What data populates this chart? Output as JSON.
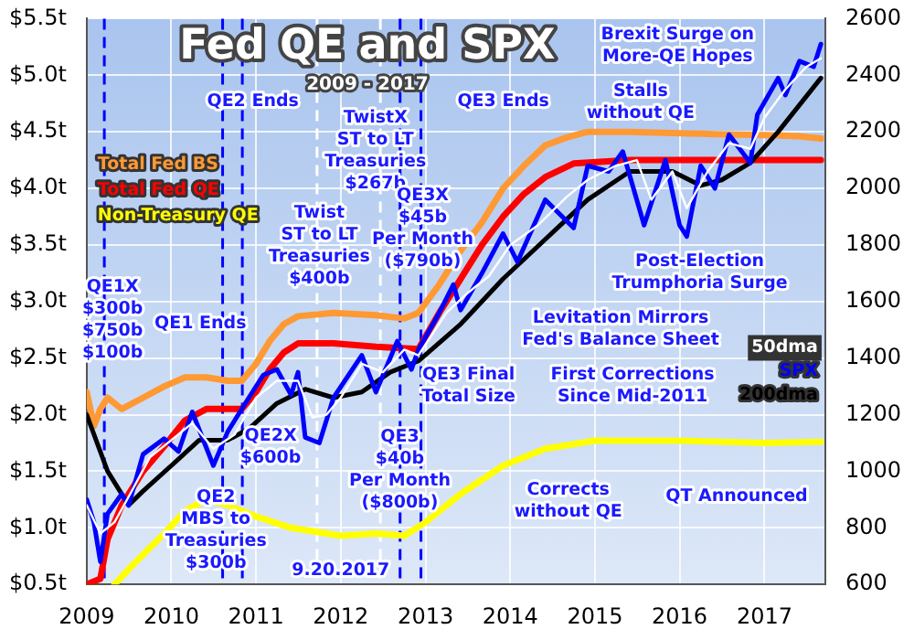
{
  "chart_data": {
    "type": "line",
    "title": "Fed QE and SPX",
    "subtitle": "2009 - 2017",
    "xlim": [
      "2009-01-01",
      "2017-09-20"
    ],
    "xticks": [
      "2009",
      "2010",
      "2011",
      "2012",
      "2013",
      "2014",
      "2015",
      "2016",
      "2017"
    ],
    "ylim": [
      0.5,
      5.5
    ],
    "yticks": [
      {
        "value": 0.5,
        "label": "$0.5t"
      },
      {
        "value": 1.0,
        "label": "$1.0t"
      },
      {
        "value": 1.5,
        "label": "$1.5t"
      },
      {
        "value": 2.0,
        "label": "$2.0t"
      },
      {
        "value": 2.5,
        "label": "$2.5t"
      },
      {
        "value": 3.0,
        "label": "$3.0t"
      },
      {
        "value": 3.5,
        "label": "$3.5t"
      },
      {
        "value": 4.0,
        "label": "$4.0t"
      },
      {
        "value": 4.5,
        "label": "$4.5t"
      },
      {
        "value": 5.0,
        "label": "$5.0t"
      },
      {
        "value": 5.5,
        "label": "$5.5t"
      }
    ],
    "y2lim": [
      600,
      2600
    ],
    "y2ticks": [
      600,
      800,
      1000,
      1200,
      1400,
      1600,
      1800,
      2000,
      2200,
      2400,
      2600
    ],
    "grid": true,
    "legend": "top left",
    "marker": "none",
    "line_style": "solid",
    "series": [
      {
        "name": "Total Fed BS",
        "color": "#ff9933",
        "axis": "y",
        "x": [
          "2009-01",
          "2009-02",
          "2009-03",
          "2009-04",
          "2009-06",
          "2009-09",
          "2009-12",
          "2010-03",
          "2010-06",
          "2010-09",
          "2010-11",
          "2011-01",
          "2011-03",
          "2011-05",
          "2011-07",
          "2011-12",
          "2012-06",
          "2012-10",
          "2012-12",
          "2013-03",
          "2013-06",
          "2013-09",
          "2013-12",
          "2014-03",
          "2014-06",
          "2014-09",
          "2014-12",
          "2015-06",
          "2016-06",
          "2017-01",
          "2017-06",
          "2017-09"
        ],
        "values": [
          2.2,
          1.9,
          2.05,
          2.15,
          2.05,
          2.15,
          2.25,
          2.33,
          2.33,
          2.3,
          2.3,
          2.45,
          2.65,
          2.8,
          2.87,
          2.9,
          2.88,
          2.85,
          2.9,
          3.15,
          3.45,
          3.7,
          4.0,
          4.2,
          4.38,
          4.45,
          4.5,
          4.5,
          4.48,
          4.47,
          4.46,
          4.44
        ]
      },
      {
        "name": "Total Fed QE",
        "color": "#ff0000",
        "axis": "y",
        "x": [
          "2009-01",
          "2009-03",
          "2009-04",
          "2009-06",
          "2009-09",
          "2009-12",
          "2010-03",
          "2010-06",
          "2010-11",
          "2011-01",
          "2011-03",
          "2011-05",
          "2011-07",
          "2011-12",
          "2012-06",
          "2012-12",
          "2013-03",
          "2013-06",
          "2013-09",
          "2013-12",
          "2014-03",
          "2014-06",
          "2014-10",
          "2015-06",
          "2016-06",
          "2017-09"
        ],
        "values": [
          0.5,
          0.55,
          0.9,
          1.2,
          1.5,
          1.72,
          1.95,
          2.05,
          2.05,
          2.2,
          2.4,
          2.55,
          2.63,
          2.63,
          2.6,
          2.58,
          2.9,
          3.2,
          3.5,
          3.75,
          3.95,
          4.1,
          4.22,
          4.25,
          4.25,
          4.25
        ]
      },
      {
        "name": "Non-Treasury QE",
        "color": "#ffff00",
        "axis": "y",
        "x": [
          "2009-05",
          "2009-08",
          "2009-12",
          "2010-03",
          "2010-06",
          "2010-09",
          "2011-01",
          "2011-06",
          "2012-01",
          "2012-06",
          "2012-10",
          "2013-01",
          "2013-06",
          "2013-12",
          "2014-06",
          "2015-01",
          "2016-01",
          "2017-01",
          "2017-09"
        ],
        "values": [
          0.5,
          0.7,
          0.95,
          1.15,
          1.25,
          1.2,
          1.1,
          1.0,
          0.93,
          0.95,
          0.93,
          1.05,
          1.3,
          1.55,
          1.7,
          1.77,
          1.77,
          1.75,
          1.76
        ]
      },
      {
        "name": "200dma",
        "color": "#000000",
        "axis": "y2",
        "x": [
          "2009-01",
          "2009-04",
          "2009-07",
          "2009-09",
          "2010-01",
          "2010-05",
          "2010-09",
          "2010-12",
          "2011-04",
          "2011-08",
          "2011-12",
          "2012-04",
          "2012-08",
          "2012-12",
          "2013-06",
          "2013-12",
          "2014-06",
          "2014-12",
          "2015-06",
          "2015-12",
          "2016-04",
          "2016-07",
          "2016-11",
          "2017-03",
          "2017-09"
        ],
        "values": [
          1200,
          1000,
          880,
          930,
          1020,
          1110,
          1110,
          1150,
          1240,
          1290,
          1260,
          1280,
          1350,
          1390,
          1520,
          1680,
          1820,
          1960,
          2060,
          2060,
          2010,
          2030,
          2090,
          2200,
          2390
        ]
      },
      {
        "name": "SPX",
        "color": "#0000ff",
        "axis": "y2",
        "x": [
          "2009-01",
          "2009-02",
          "2009-03",
          "2009-04",
          "2009-06",
          "2009-07",
          "2009-09",
          "2009-12",
          "2010-02",
          "2010-04",
          "2010-07",
          "2010-09",
          "2010-12",
          "2011-02",
          "2011-04",
          "2011-06",
          "2011-07",
          "2011-08",
          "2011-10",
          "2011-12",
          "2012-04",
          "2012-06",
          "2012-09",
          "2012-11",
          "2012-12",
          "2013-03",
          "2013-05",
          "2013-06",
          "2013-09",
          "2013-12",
          "2014-02",
          "2014-06",
          "2014-10",
          "2014-12",
          "2015-03",
          "2015-05",
          "2015-08",
          "2015-11",
          "2016-01",
          "2016-02",
          "2016-04",
          "2016-06",
          "2016-08",
          "2016-11",
          "2016-12",
          "2017-03",
          "2017-04",
          "2017-06",
          "2017-08",
          "2017-09"
        ],
        "values": [
          900,
          820,
          680,
          850,
          920,
          880,
          1060,
          1115,
          1070,
          1210,
          1020,
          1140,
          1260,
          1340,
          1360,
          1270,
          1350,
          1120,
          1100,
          1260,
          1410,
          1280,
          1460,
          1360,
          1430,
          1560,
          1660,
          1570,
          1700,
          1840,
          1740,
          1960,
          1860,
          2080,
          2060,
          2130,
          1870,
          2100,
          1870,
          1830,
          2080,
          2000,
          2190,
          2090,
          2260,
          2390,
          2330,
          2450,
          2430,
          2510
        ]
      },
      {
        "name": "50dma",
        "color": "#ffffff",
        "axis": "y2",
        "x": [
          "2009-01",
          "2009-03",
          "2009-05",
          "2009-07",
          "2009-10",
          "2010-01",
          "2010-04",
          "2010-07",
          "2010-10",
          "2011-01",
          "2011-04",
          "2011-07",
          "2011-09",
          "2011-11",
          "2012-01",
          "2012-04",
          "2012-07",
          "2012-10",
          "2012-12",
          "2013-04",
          "2013-07",
          "2013-10",
          "2014-01",
          "2014-05",
          "2014-09",
          "2014-12",
          "2015-04",
          "2015-07",
          "2015-09",
          "2015-12",
          "2016-02",
          "2016-05",
          "2016-08",
          "2016-11",
          "2017-01",
          "2017-04",
          "2017-07",
          "2017-09"
        ],
        "values": [
          880,
          780,
          820,
          910,
          1050,
          1110,
          1170,
          1080,
          1130,
          1260,
          1320,
          1320,
          1190,
          1200,
          1260,
          1380,
          1350,
          1430,
          1410,
          1560,
          1630,
          1690,
          1800,
          1870,
          1970,
          2030,
          2080,
          2100,
          1960,
          2060,
          1930,
          2060,
          2160,
          2140,
          2250,
          2350,
          2430,
          2460
        ]
      }
    ],
    "ref_lines": [
      {
        "axis": "x",
        "value": "2009-03-18",
        "color": "#0000ff",
        "line_style": "dashed"
      },
      {
        "axis": "x",
        "value": "2010-08-10",
        "color": "#0000ff",
        "line_style": "dashed"
      },
      {
        "axis": "x",
        "value": "2010-11-03",
        "color": "#0000ff",
        "line_style": "dashed"
      },
      {
        "axis": "x",
        "value": "2011-09-21",
        "color": "#ffffff",
        "line_style": "dashed"
      },
      {
        "axis": "x",
        "value": "2012-06-20",
        "color": "#ffffff",
        "line_style": "dashed"
      },
      {
        "axis": "x",
        "value": "2012-09-13",
        "color": "#0000ff",
        "line_style": "dashed"
      },
      {
        "axis": "x",
        "value": "2012-12-12",
        "color": "#0000ff",
        "line_style": "dashed"
      }
    ],
    "annotations": [
      "QE1X\n$300b\n$750b\n$100b",
      "QE1 Ends",
      "QE2 Ends",
      "Twist\nST to LT\nTreasuries\n$400b",
      "TwistX\nST to LT\nTreasuries\n$267b",
      "QE3X\n$45b\nPer Month\n($790b)",
      "QE3 Ends",
      "Brexit Surge on\nMore-QE Hopes",
      "Stalls\nwithout QE",
      "Levitation Mirrors\nFed's Balance Sheet",
      "First Corrections\nSince Mid-2011",
      "Post-Election\nTrumphoria Surge",
      "QE3 Final\nTotal Size",
      "QE2X\n$600b",
      "QE3\n$40b\nPer Month\n($800b)",
      "Corrects\nwithout QE",
      "QE2\nMBS to\nTreasuries\n$300b",
      "9.20.2017",
      "QT Announced"
    ]
  }
}
